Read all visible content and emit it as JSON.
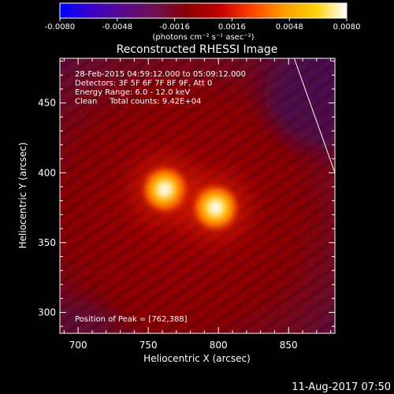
{
  "chart_data": {
    "type": "heatmap",
    "title": "Reconstructed RHESSI Image",
    "xlabel": "Heliocentric X (arcsec)",
    "ylabel": "Heliocentric Y (arcsec)",
    "xlim": [
      687,
      883
    ],
    "ylim": [
      285,
      482
    ],
    "xticks": [
      700,
      750,
      800,
      850
    ],
    "yticks": [
      300,
      350,
      400,
      450
    ],
    "colorbar": {
      "min": -0.008,
      "max": 0.008,
      "ticks": [
        "-0.0080",
        "-0.0048",
        "-0.0016",
        "0.0016",
        "0.0048",
        "0.0080"
      ],
      "unit_label": "(photons cm⁻² s⁻¹ asec⁻²)",
      "colors": [
        "#0000ff",
        "#3a00c8",
        "#5a0a8a",
        "#6e1050",
        "#8a0000",
        "#c00000",
        "#ff4000",
        "#ff9a00",
        "#ffd000",
        "#ffffff"
      ]
    },
    "sources": [
      {
        "x": 762,
        "y": 388,
        "peak": 0.008
      },
      {
        "x": 798,
        "y": 375,
        "peak": 0.0075
      }
    ],
    "limb_line": [
      [
        854,
        482
      ],
      [
        883,
        400
      ]
    ],
    "info_lines": [
      "28-Feb-2015 04:59:12.000 to 05:09:12.000",
      "Detectors: 3F 5F 6F 7F 8F 9F, Att 0",
      "Energy Range: 6.0 - 12.0 keV",
      "Clean     Total counts: 9.42E+04"
    ],
    "peak_label": "Position of Peak = [762,388]",
    "timestamp": "11-Aug-2017 07:50"
  }
}
